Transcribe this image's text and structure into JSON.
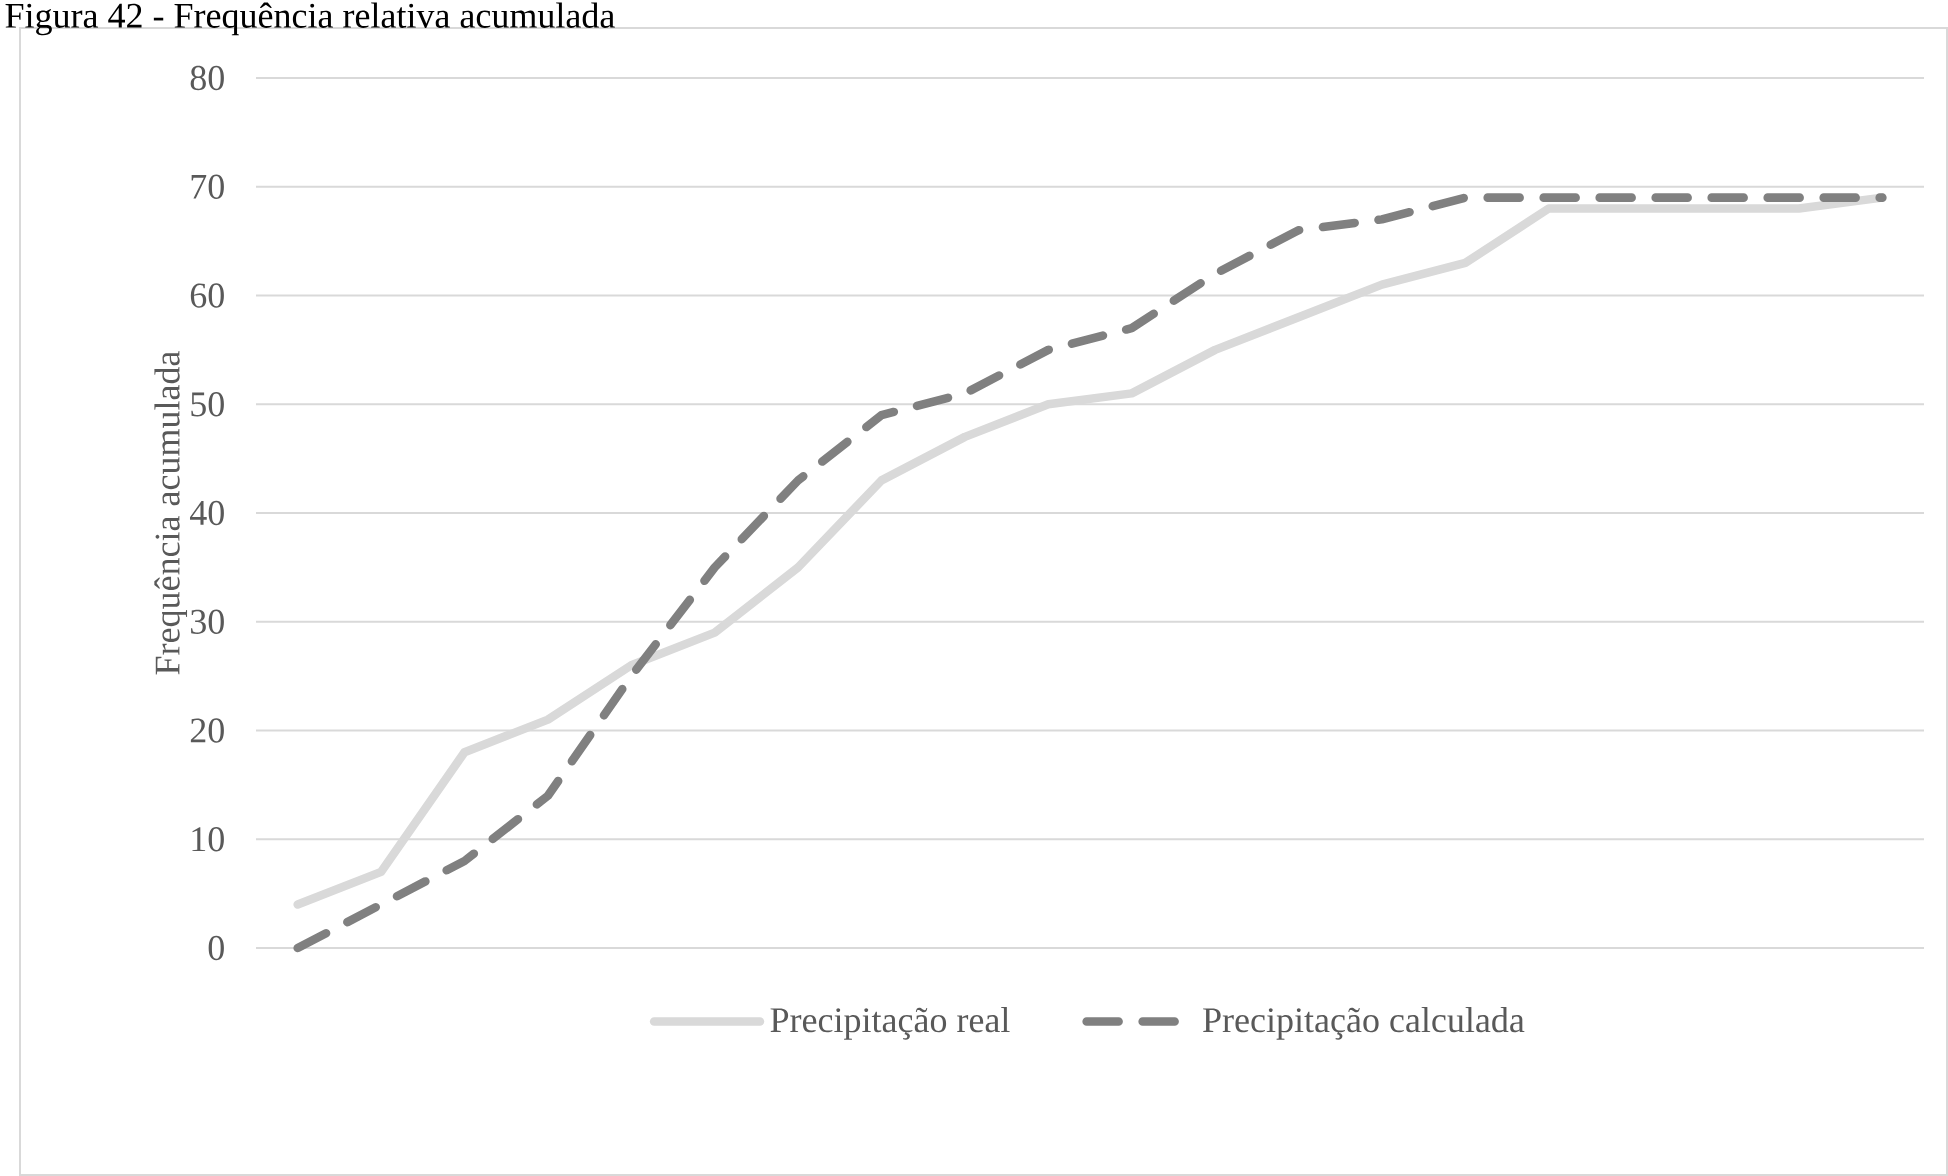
{
  "chart_data": {
    "type": "line",
    "title": "Figura 42 - Frequência relativa acumulada",
    "ylabel": "Frequência acumulada",
    "categories": [
      null,
      null,
      null,
      null,
      null,
      null,
      null,
      null,
      null,
      null,
      null,
      null,
      null,
      null,
      null,
      null,
      null,
      null,
      null,
      null
    ],
    "series": [
      {
        "name": "Precipitação real",
        "color": "#d9d9d9",
        "line_style": "solid",
        "values": [
          4,
          7,
          18,
          21,
          26,
          29,
          35,
          43,
          47,
          50,
          51,
          55,
          58,
          61,
          63,
          68,
          68,
          68,
          68,
          69
        ]
      },
      {
        "name": "Precipitação calculada",
        "color": "#808080",
        "line_style": "dashed",
        "values": [
          0,
          4,
          8,
          14,
          25,
          35,
          43,
          49,
          51,
          55,
          57,
          62,
          66,
          67,
          69,
          69,
          69,
          69,
          69,
          69
        ]
      }
    ],
    "ylim": [
      0,
      80
    ],
    "yticks": [
      0,
      10,
      20,
      30,
      40,
      50,
      60,
      70,
      80
    ],
    "grid": "y",
    "legend": "bottom",
    "marker": "none"
  }
}
